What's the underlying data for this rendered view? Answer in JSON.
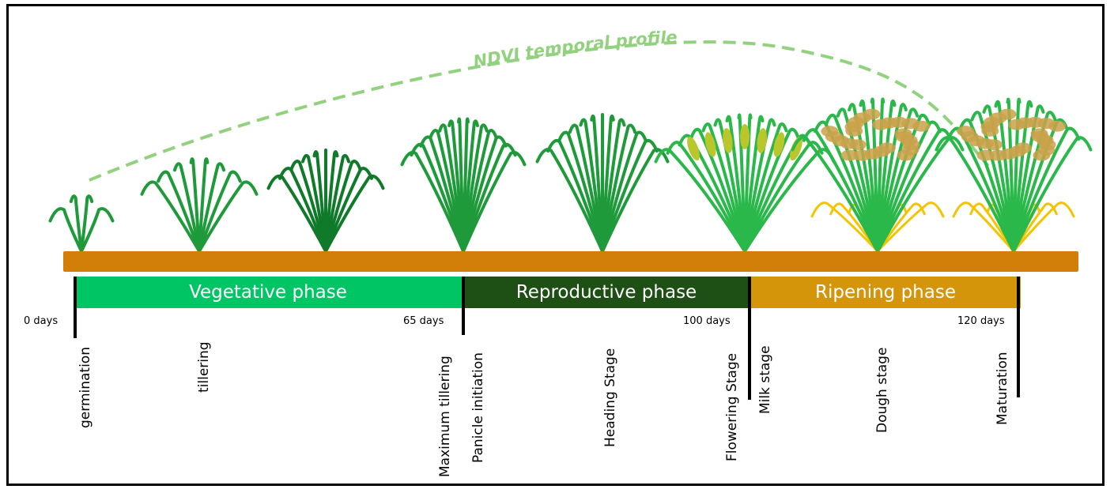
{
  "curve": {
    "label": "NDVI temporal profile",
    "color": "#92d27f"
  },
  "colors": {
    "soil": "#d27f0a",
    "vegetative": "#00c565",
    "reproductive": "#1e4f14",
    "ripening": "#d4950a",
    "leaf_dark": "#0f7a2a",
    "leaf_mid": "#1f9a3a",
    "leaf_bright": "#2ab84a",
    "straw": "#f3c400",
    "grain": "#c9a24a",
    "panicle": "#b9c62c"
  },
  "phases": [
    {
      "id": "vegetative",
      "label": "Vegetative phase"
    },
    {
      "id": "reproductive",
      "label": "Reproductive phase"
    },
    {
      "id": "ripening",
      "label": "Ripening phase"
    }
  ],
  "days": [
    "0 days",
    "65 days",
    "100 days",
    "120 days"
  ],
  "stages": [
    "germination",
    "tillering",
    "Maximum tillering",
    "Panicle initiation",
    "Heading Stage",
    "Flowering Stage",
    "Milk stage",
    "Dough stage",
    "Maturation"
  ],
  "plants": [
    {
      "stage": "germination",
      "blades": 4,
      "height": 70,
      "spread": 22,
      "color": "leaf_mid",
      "straw": false,
      "grain": false,
      "panicle": false
    },
    {
      "stage": "tillering",
      "blades": 8,
      "height": 115,
      "spread": 55,
      "color": "leaf_mid",
      "straw": false,
      "grain": false,
      "panicle": false
    },
    {
      "stage": "tillering",
      "blades": 11,
      "height": 125,
      "spread": 55,
      "color": "leaf_dark",
      "straw": false,
      "grain": false,
      "panicle": false
    },
    {
      "stage": "Maximum tillering",
      "blades": 14,
      "height": 165,
      "spread": 60,
      "color": "leaf_mid",
      "straw": false,
      "grain": false,
      "panicle": false
    },
    {
      "stage": "Heading Stage",
      "blades": 13,
      "height": 170,
      "spread": 65,
      "color": "leaf_mid",
      "straw": false,
      "grain": false,
      "panicle": false
    },
    {
      "stage": "Flowering Stage",
      "blades": 16,
      "height": 170,
      "spread": 95,
      "color": "leaf_bright",
      "straw": false,
      "grain": false,
      "panicle": true
    },
    {
      "stage": "Dough stage",
      "blades": 16,
      "height": 190,
      "spread": 90,
      "color": "leaf_bright",
      "straw": true,
      "grain": true,
      "panicle": false
    },
    {
      "stage": "Maturation",
      "blades": 14,
      "height": 190,
      "spread": 80,
      "color": "leaf_bright",
      "straw": true,
      "grain": true,
      "panicle": false
    }
  ]
}
